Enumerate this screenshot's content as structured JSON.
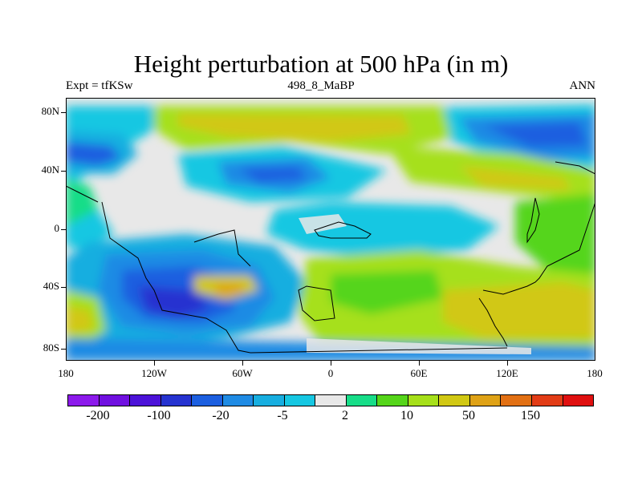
{
  "title": "Height perturbation at 500 hPa (in m)",
  "left_label": "Expt = tfKSw",
  "center_label": "498_8_MaBP",
  "right_label": "ANN",
  "y_ticks": [
    "80N",
    "40N",
    "0",
    "40S",
    "80S"
  ],
  "x_ticks": [
    "180",
    "120W",
    "60W",
    "0",
    "60E",
    "120E",
    "180"
  ],
  "colorbar": {
    "colors": [
      "#8c1aeb",
      "#7010e0",
      "#4c12d8",
      "#2633d0",
      "#1c5fe0",
      "#1f8be4",
      "#17aee0",
      "#16c7e2",
      "#e8e8e8",
      "#17dd88",
      "#55d51a",
      "#a6e01a",
      "#d1c813",
      "#dfa216",
      "#e27013",
      "#e23c16",
      "#e01010"
    ],
    "labels": [
      "-200",
      "-100",
      "-20",
      "-5",
      "2",
      "10",
      "50",
      "150"
    ]
  }
}
